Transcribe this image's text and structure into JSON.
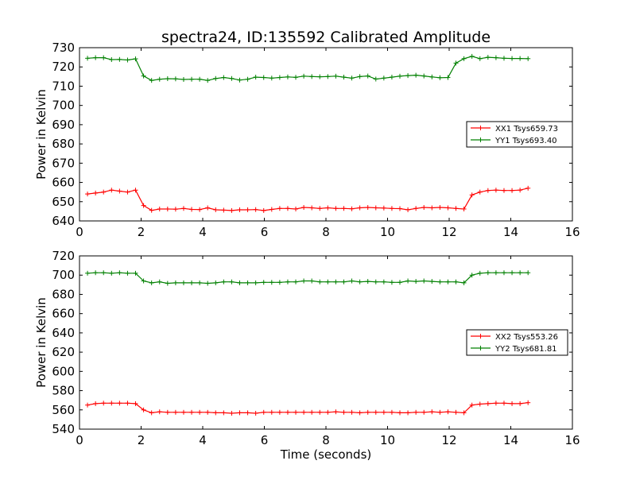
{
  "title": "spectra24, ID:135592 Calibrated Amplitude",
  "colors": {
    "red": "#ff0000",
    "green": "#008000"
  },
  "chart_data": [
    {
      "type": "line",
      "xlabel": "",
      "ylabel": "Power in Kelvin",
      "xlim": [
        0,
        16
      ],
      "ylim": [
        640,
        730
      ],
      "xticks": [
        "0",
        "2",
        "4",
        "6",
        "8",
        "10",
        "12",
        "14",
        "16"
      ],
      "yticks": [
        "640",
        "650",
        "660",
        "670",
        "680",
        "690",
        "700",
        "710",
        "720",
        "730"
      ],
      "legend_position": "right",
      "x": [
        0.26,
        0.52,
        0.78,
        1.04,
        1.3,
        1.56,
        1.82,
        2.08,
        2.34,
        2.6,
        2.86,
        3.12,
        3.38,
        3.64,
        3.9,
        4.16,
        4.42,
        4.68,
        4.94,
        5.2,
        5.46,
        5.72,
        5.98,
        6.24,
        6.5,
        6.76,
        7.02,
        7.28,
        7.54,
        7.8,
        8.06,
        8.32,
        8.58,
        8.84,
        9.1,
        9.36,
        9.62,
        9.88,
        10.14,
        10.4,
        10.66,
        10.92,
        11.18,
        11.44,
        11.7,
        11.96,
        12.22,
        12.48,
        12.74,
        13.0,
        13.26,
        13.52,
        13.78,
        14.04,
        14.3,
        14.56
      ],
      "series": [
        {
          "name": "XX1 Tsys659.73",
          "color": "#ff0000",
          "values": [
            654.0,
            654.5,
            655.0,
            656.0,
            655.5,
            655.0,
            656.0,
            648.0,
            645.5,
            646.2,
            646.2,
            646.1,
            646.5,
            646.0,
            645.9,
            646.8,
            645.8,
            645.6,
            645.4,
            645.8,
            645.8,
            645.9,
            645.4,
            646.0,
            646.5,
            646.5,
            646.2,
            647.0,
            646.8,
            646.5,
            646.8,
            646.5,
            646.5,
            646.3,
            646.8,
            647.0,
            646.8,
            646.7,
            646.5,
            646.4,
            645.8,
            646.5,
            647.0,
            646.8,
            647.0,
            646.8,
            646.5,
            646.2,
            653.5,
            655.0,
            655.8,
            656.0,
            655.8,
            655.8,
            656.0,
            657.0
          ]
        },
        {
          "name": "YY1 Tsys693.40",
          "color": "#008000",
          "values": [
            724.5,
            724.8,
            724.8,
            723.8,
            723.9,
            723.6,
            724.2,
            715.3,
            713.0,
            713.6,
            713.9,
            713.8,
            713.5,
            713.6,
            713.6,
            713.0,
            714.0,
            714.5,
            714.0,
            713.2,
            713.6,
            714.7,
            714.5,
            714.2,
            714.5,
            714.8,
            714.6,
            715.2,
            715.0,
            714.9,
            715.0,
            715.2,
            714.7,
            714.2,
            715.0,
            715.3,
            713.7,
            714.2,
            714.7,
            715.2,
            715.5,
            715.7,
            715.3,
            714.8,
            714.4,
            714.5,
            722.0,
            724.3,
            725.5,
            724.3,
            725.0,
            724.8,
            724.5,
            724.4,
            724.4,
            724.3
          ]
        }
      ]
    },
    {
      "type": "line",
      "xlabel": "Time (seconds)",
      "ylabel": "Power in Kelvin",
      "xlim": [
        0,
        16
      ],
      "ylim": [
        540,
        720
      ],
      "xticks": [
        "0",
        "2",
        "4",
        "6",
        "8",
        "10",
        "12",
        "14",
        "16"
      ],
      "yticks": [
        "540",
        "560",
        "580",
        "600",
        "620",
        "640",
        "660",
        "680",
        "700",
        "720"
      ],
      "legend_position": "right",
      "x": [
        0.26,
        0.52,
        0.78,
        1.04,
        1.3,
        1.56,
        1.82,
        2.08,
        2.34,
        2.6,
        2.86,
        3.12,
        3.38,
        3.64,
        3.9,
        4.16,
        4.42,
        4.68,
        4.94,
        5.2,
        5.46,
        5.72,
        5.98,
        6.24,
        6.5,
        6.76,
        7.02,
        7.28,
        7.54,
        7.8,
        8.06,
        8.32,
        8.58,
        8.84,
        9.1,
        9.36,
        9.62,
        9.88,
        10.14,
        10.4,
        10.66,
        10.92,
        11.18,
        11.44,
        11.7,
        11.96,
        12.22,
        12.48,
        12.74,
        13.0,
        13.26,
        13.52,
        13.78,
        14.04,
        14.3,
        14.56
      ],
      "series": [
        {
          "name": "XX2 Tsys553.26",
          "color": "#ff0000",
          "values": [
            565.0,
            566.5,
            567.0,
            567.0,
            567.0,
            567.0,
            566.5,
            560.0,
            557.0,
            558.0,
            557.5,
            557.5,
            557.5,
            557.5,
            557.5,
            557.5,
            557.0,
            557.0,
            556.5,
            557.0,
            557.0,
            556.5,
            557.5,
            557.5,
            557.5,
            557.5,
            557.5,
            557.5,
            557.5,
            557.5,
            557.5,
            558.0,
            557.5,
            557.5,
            557.0,
            557.5,
            557.5,
            557.5,
            557.5,
            557.0,
            557.0,
            557.5,
            557.5,
            558.0,
            557.5,
            558.0,
            557.5,
            557.0,
            565.0,
            566.0,
            566.5,
            567.0,
            567.0,
            566.5,
            566.5,
            567.5
          ]
        },
        {
          "name": "YY2 Tsys681.81",
          "color": "#008000",
          "values": [
            702.0,
            702.5,
            702.5,
            702.0,
            702.5,
            702.0,
            702.0,
            694.0,
            692.0,
            693.0,
            691.5,
            692.0,
            692.0,
            692.0,
            692.0,
            691.5,
            692.0,
            693.0,
            693.0,
            692.0,
            692.0,
            692.0,
            692.5,
            692.5,
            692.5,
            693.0,
            693.0,
            694.0,
            694.0,
            693.0,
            693.0,
            693.0,
            693.0,
            694.0,
            693.0,
            693.5,
            693.0,
            693.0,
            692.5,
            692.5,
            694.0,
            693.5,
            694.0,
            693.5,
            693.0,
            693.0,
            693.0,
            692.0,
            700.0,
            702.0,
            702.5,
            702.5,
            702.5,
            702.5,
            702.5,
            702.5
          ]
        }
      ]
    }
  ]
}
